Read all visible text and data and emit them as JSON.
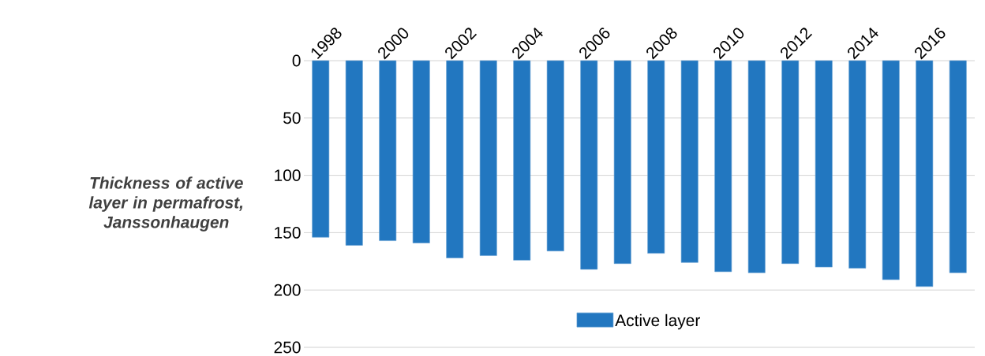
{
  "chart_data": {
    "type": "bar",
    "ylabel": "Thickness of active layer in permafrost, Janssonhaugen",
    "categories": [
      "1998",
      null,
      "2000",
      null,
      "2002",
      null,
      "2004",
      null,
      "2006",
      null,
      "2008",
      null,
      "2010",
      null,
      "2012",
      null,
      "2014",
      null,
      "2016",
      null
    ],
    "series": [
      {
        "name": "Active layer",
        "color": "#2277c0",
        "values": [
          154,
          161,
          157,
          159,
          172,
          170,
          174,
          166,
          182,
          177,
          168,
          176,
          184,
          185,
          177,
          180,
          181,
          191,
          197,
          185
        ]
      }
    ],
    "ylim": [
      250,
      0
    ],
    "yticks": [
      0,
      50,
      100,
      150,
      200,
      250
    ],
    "grid": "y",
    "legend": "bottom"
  }
}
